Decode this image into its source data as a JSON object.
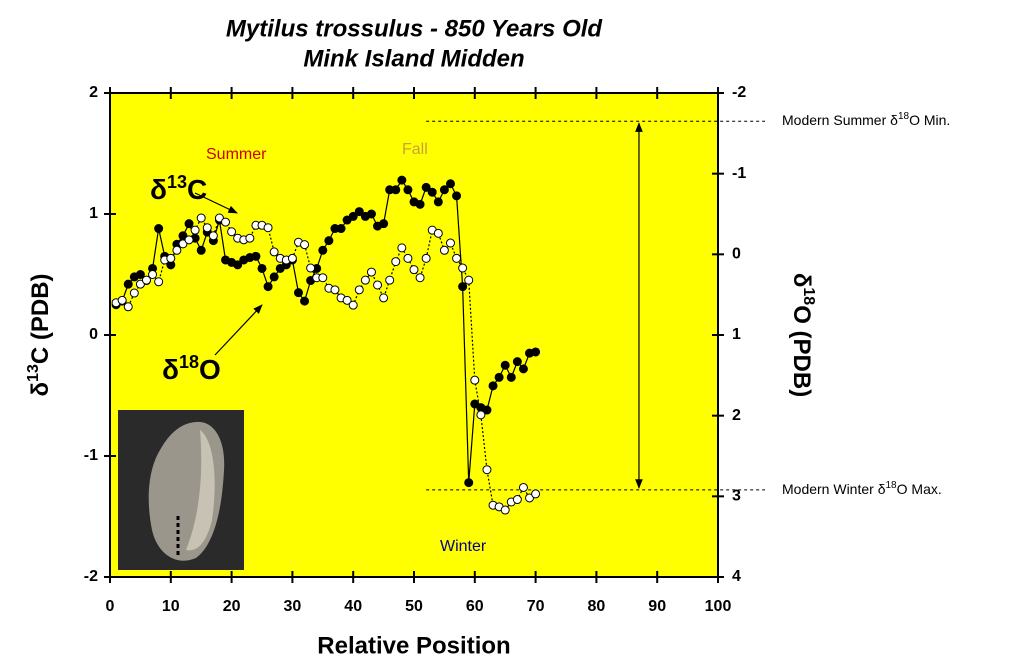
{
  "chart_data": {
    "type": "line",
    "title": [
      "Mytilus trossulus - 850 Years Old",
      "Mink Island Midden"
    ],
    "x_label": "Relative Position",
    "y_label": {
      "symbol": "δ",
      "sup": "13",
      "base": "C (PDB)"
    },
    "y2_label": {
      "symbol": "δ",
      "sup": "18",
      "base": "O (PDB)"
    },
    "xlim": [
      0,
      100
    ],
    "xticks": [
      0,
      10,
      20,
      30,
      40,
      50,
      60,
      70,
      80,
      90,
      100
    ],
    "ylim": [
      -2,
      2
    ],
    "yticks": [
      -2,
      -1,
      0,
      1,
      2
    ],
    "y2lim": [
      4,
      -2
    ],
    "y2ticks": [
      -2,
      -1,
      0,
      1,
      2,
      3,
      4
    ],
    "background": "#ffff00",
    "x": [
      1,
      2,
      3,
      4,
      5,
      6,
      7,
      8,
      9,
      10,
      11,
      12,
      13,
      14,
      15,
      16,
      17,
      18,
      19,
      20,
      21,
      22,
      23,
      24,
      25,
      26,
      27,
      28,
      29,
      30,
      31,
      32,
      33,
      34,
      35,
      36,
      37,
      38,
      39,
      40,
      41,
      42,
      43,
      44,
      45,
      46,
      47,
      48,
      49,
      50,
      51,
      52,
      53,
      54,
      55,
      56,
      57,
      58,
      59,
      60,
      61,
      62,
      63,
      64,
      65,
      66,
      67,
      68,
      69,
      70
    ],
    "series": [
      {
        "label": {
          "symbol": "δ",
          "sup": "13",
          "base": "C"
        },
        "color": "#000000",
        "marker": "filled",
        "line": "solid",
        "values": [
          0.25,
          0.28,
          0.42,
          0.48,
          0.5,
          0.45,
          0.55,
          0.88,
          0.65,
          0.58,
          0.75,
          0.82,
          0.92,
          0.8,
          0.7,
          0.85,
          0.78,
          0.95,
          0.62,
          0.6,
          0.58,
          0.62,
          0.64,
          0.65,
          0.55,
          0.4,
          0.48,
          0.55,
          0.58,
          0.62,
          0.35,
          0.28,
          0.45,
          0.55,
          0.7,
          0.78,
          0.88,
          0.88,
          0.95,
          0.98,
          1.02,
          0.98,
          1.0,
          0.9,
          0.92,
          1.2,
          1.2,
          1.28,
          1.2,
          1.1,
          1.08,
          1.22,
          1.18,
          1.1,
          1.2,
          1.25,
          1.15,
          0.4,
          -1.22,
          -0.57,
          -0.6,
          -0.62,
          -0.42,
          -0.35,
          -0.25,
          -0.35,
          -0.22,
          -0.28,
          -0.15,
          -0.14
        ]
      },
      {
        "label": {
          "symbol": "δ",
          "sup": "18",
          "base": "O"
        },
        "color": "#000000",
        "marker": "open",
        "line": "dotted",
        "axis": "y2",
        "values": [
          0.6,
          0.57,
          0.65,
          0.48,
          0.37,
          0.32,
          0.25,
          0.34,
          0.07,
          0.05,
          -0.05,
          -0.13,
          -0.18,
          -0.3,
          -0.45,
          -0.33,
          -0.23,
          -0.45,
          -0.4,
          -0.28,
          -0.2,
          -0.18,
          -0.2,
          -0.36,
          -0.36,
          -0.33,
          -0.03,
          0.05,
          0.07,
          0.05,
          -0.15,
          -0.12,
          0.17,
          0.29,
          0.29,
          0.42,
          0.44,
          0.54,
          0.57,
          0.63,
          0.44,
          0.32,
          0.22,
          0.38,
          0.54,
          0.32,
          0.09,
          -0.08,
          0.05,
          0.19,
          0.29,
          0.05,
          -0.3,
          -0.26,
          -0.05,
          -0.14,
          0.05,
          0.17,
          0.32,
          1.56,
          1.99,
          2.67,
          3.11,
          3.13,
          3.17,
          3.07,
          3.04,
          2.89,
          3.02,
          2.97
        ]
      }
    ],
    "annotations": [
      {
        "text": "Summer",
        "color": "#cc0000"
      },
      {
        "text": "Fall",
        "color": "#c8a040"
      },
      {
        "text": "Winter",
        "color": "#000080"
      }
    ],
    "reference_lines": [
      {
        "label": {
          "before": "Modern Summer δ",
          "sup": "18",
          "after": "O Min."
        },
        "value": -1.65
      },
      {
        "label": {
          "before": "Modern Winter δ",
          "sup": "18",
          "after": "O Max."
        },
        "value": 2.92
      }
    ]
  }
}
